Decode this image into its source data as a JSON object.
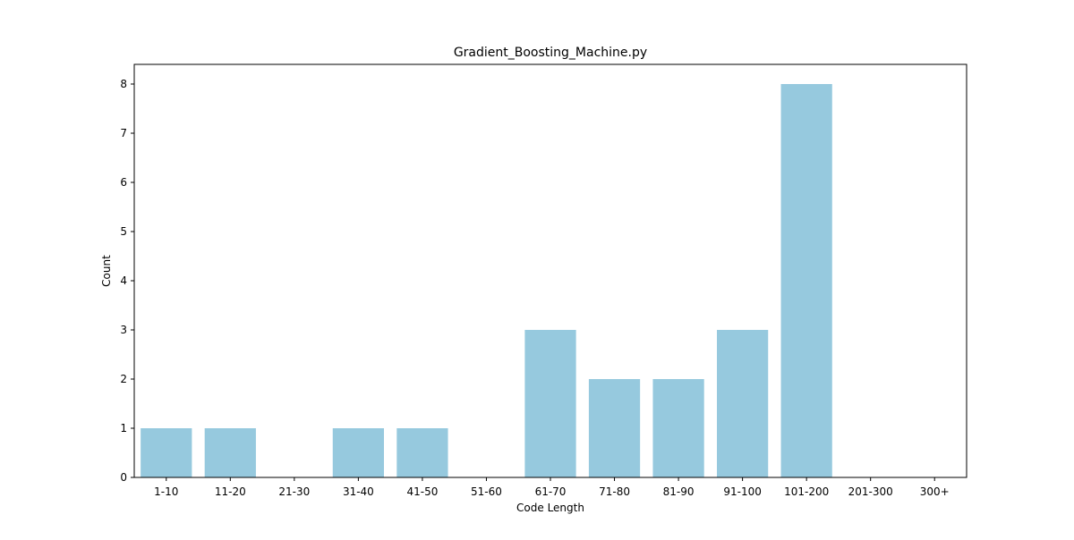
{
  "chart_data": {
    "type": "bar",
    "title": "Gradient_Boosting_Machine.py",
    "xlabel": "Code Length",
    "ylabel": "Count",
    "categories": [
      "1-10",
      "11-20",
      "21-30",
      "31-40",
      "41-50",
      "51-60",
      "61-70",
      "71-80",
      "81-90",
      "91-100",
      "101-200",
      "201-300",
      "300+"
    ],
    "values": [
      1,
      1,
      0,
      1,
      1,
      0,
      3,
      2,
      2,
      3,
      8,
      0,
      0
    ],
    "ylim": [
      0,
      8.4
    ],
    "yticks": [
      0,
      1,
      2,
      3,
      4,
      5,
      6,
      7,
      8
    ],
    "grid": false,
    "bar_color": "#96c9de"
  }
}
